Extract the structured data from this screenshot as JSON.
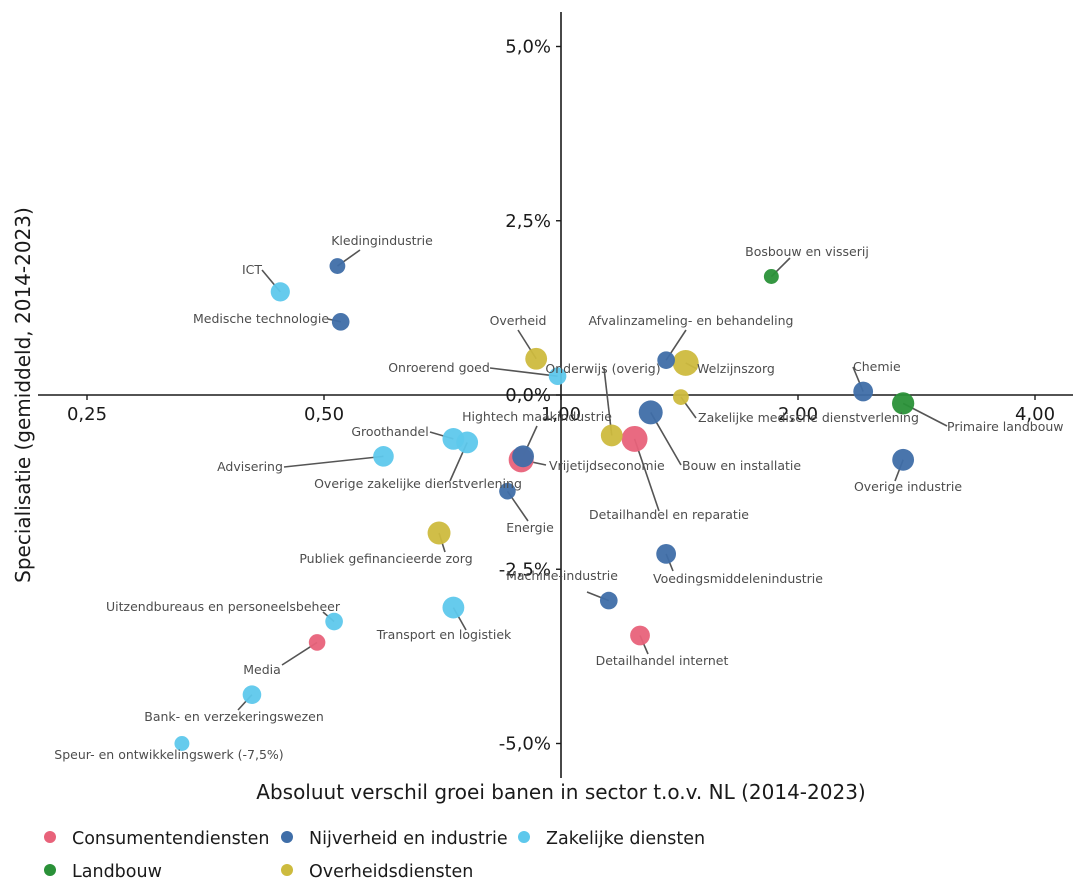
{
  "chart_data": {
    "type": "scatter",
    "title": "",
    "xlabel": "Absoluut verschil groei banen in sector t.o.v. NL (2014-2023)",
    "ylabel": "Specialisatie (gemiddeld, 2014-2023)",
    "x_scale": "log2",
    "xlim": [
      0.2,
      4.9
    ],
    "ylim": [
      -5.5,
      5.5
    ],
    "x_ticks": [
      {
        "value": 0.25,
        "label": "0,25"
      },
      {
        "value": 0.5,
        "label": "0,50"
      },
      {
        "value": 1.0,
        "label": "1,00"
      },
      {
        "value": 2.0,
        "label": "2,00"
      },
      {
        "value": 4.0,
        "label": "4,00"
      }
    ],
    "y_ticks": [
      {
        "value": 5.0,
        "label": "5,0%"
      },
      {
        "value": 2.5,
        "label": "2,5%"
      },
      {
        "value": 0.0,
        "label": "0,0%"
      },
      {
        "value": -2.5,
        "label": "-2,5%"
      },
      {
        "value": -5.0,
        "label": "-5,0%"
      }
    ],
    "grid": false,
    "legend_position": "bottom",
    "legend": [
      {
        "name": "Consumentendiensten",
        "color": "#e8627a"
      },
      {
        "name": "Nijverheid en industrie",
        "color": "#3f6ea8"
      },
      {
        "name": "Zakelijke diensten",
        "color": "#5ec8ec"
      },
      {
        "name": "Landbouw",
        "color": "#2a9138"
      },
      {
        "name": "Overheidsdiensten",
        "color": "#cdbb3e"
      }
    ],
    "points": [
      {
        "label": "Kledingindustrie",
        "group": "Nijverheid en industrie",
        "x": 0.52,
        "y": 1.85,
        "size": 1
      },
      {
        "label": "ICT",
        "group": "Zakelijke diensten",
        "x": 0.44,
        "y": 1.48,
        "size": 2
      },
      {
        "label": "Medische technologie",
        "group": "Nijverheid en industrie",
        "x": 0.525,
        "y": 1.05,
        "size": 1.5
      },
      {
        "label": "Bosbouw en visserij",
        "group": "Landbouw",
        "x": 1.85,
        "y": 1.7,
        "size": 0.8
      },
      {
        "label": "Overheid",
        "group": "Overheidsdiensten",
        "x": 0.93,
        "y": 0.52,
        "size": 3
      },
      {
        "label": "Afvalinzameling- en behandeling",
        "group": "Nijverheid en industrie",
        "x": 1.36,
        "y": 0.5,
        "size": 1.5
      },
      {
        "label": "Welzijnszorg",
        "group": "Overheidsdiensten",
        "x": 1.44,
        "y": 0.46,
        "size": 5
      },
      {
        "label": "Onroerend goed",
        "group": "Zakelijke diensten",
        "x": 0.99,
        "y": 0.27,
        "size": 1.5
      },
      {
        "label": "Chemie",
        "group": "Nijverheid en industrie",
        "x": 2.42,
        "y": 0.05,
        "size": 2.2
      },
      {
        "label": "Primaire landbouw",
        "group": "Landbouw",
        "x": 2.72,
        "y": -0.12,
        "size": 3.2
      },
      {
        "label": "Zakelijke medische dienstverlening",
        "group": "Overheidsdiensten",
        "x": 1.42,
        "y": -0.03,
        "size": 1
      },
      {
        "label": "Hightech maakindustrie",
        "group": "Nijverheid en industrie",
        "x": 0.895,
        "y": -0.88,
        "size": 3
      },
      {
        "label": "Bouw en installatie",
        "group": "Nijverheid en industrie",
        "x": 1.3,
        "y": -0.25,
        "size": 4
      },
      {
        "label": "Onderwijs (overig)",
        "group": "Overheidsdiensten",
        "x": 1.16,
        "y": -0.58,
        "size": 3
      },
      {
        "label": "Detailhandel en reparatie",
        "group": "Consumentendiensten",
        "x": 1.24,
        "y": -0.63,
        "size": 5
      },
      {
        "label": "Vrijetijdseconomie",
        "group": "Consumentendiensten",
        "x": 0.89,
        "y": -0.93,
        "size": 4.5
      },
      {
        "label": "Groothandel",
        "group": "Zakelijke diensten",
        "x": 0.73,
        "y": -0.63,
        "size": 3
      },
      {
        "label": "Overige zakelijke dienstverlening",
        "group": "Zakelijke diensten",
        "x": 0.76,
        "y": -0.68,
        "size": 3
      },
      {
        "label": "Advisering",
        "group": "Zakelijke diensten",
        "x": 0.595,
        "y": -0.88,
        "size": 2.5
      },
      {
        "label": "Overige industrie",
        "group": "Nijverheid en industrie",
        "x": 2.72,
        "y": -0.93,
        "size": 3
      },
      {
        "label": "Energie",
        "group": "Nijverheid en industrie",
        "x": 0.855,
        "y": -1.38,
        "size": 1.2
      },
      {
        "label": "Publiek gefinancieerde zorg",
        "group": "Overheidsdiensten",
        "x": 0.7,
        "y": -1.98,
        "size": 3.5
      },
      {
        "label": "Voedingsmiddelenindustrie",
        "group": "Nijverheid en industrie",
        "x": 1.36,
        "y": -2.28,
        "size": 2.2
      },
      {
        "label": "Machine-industrie",
        "group": "Nijverheid en industrie",
        "x": 1.15,
        "y": -2.95,
        "size": 1.5
      },
      {
        "label": "Transport en logistiek",
        "group": "Zakelijke diensten",
        "x": 0.73,
        "y": -3.05,
        "size": 3
      },
      {
        "label": "Uitzendbureaus en personeelsbeheer",
        "group": "Zakelijke diensten",
        "x": 0.515,
        "y": -3.25,
        "size": 1.5
      },
      {
        "label": "Detailhandel internet",
        "group": "Consumentendiensten",
        "x": 1.26,
        "y": -3.45,
        "size": 2.2
      },
      {
        "label": "Media",
        "group": "Consumentendiensten",
        "x": 0.49,
        "y": -3.55,
        "size": 1.2
      },
      {
        "label": "Bank- en verzekeringswezen",
        "group": "Zakelijke diensten",
        "x": 0.405,
        "y": -4.3,
        "size": 1.8
      },
      {
        "label": "Speur- en ontwikkelingswerk (-7,5%)",
        "group": "Zakelijke diensten",
        "x": 0.33,
        "y": -5.0,
        "size": 0.8
      }
    ]
  }
}
